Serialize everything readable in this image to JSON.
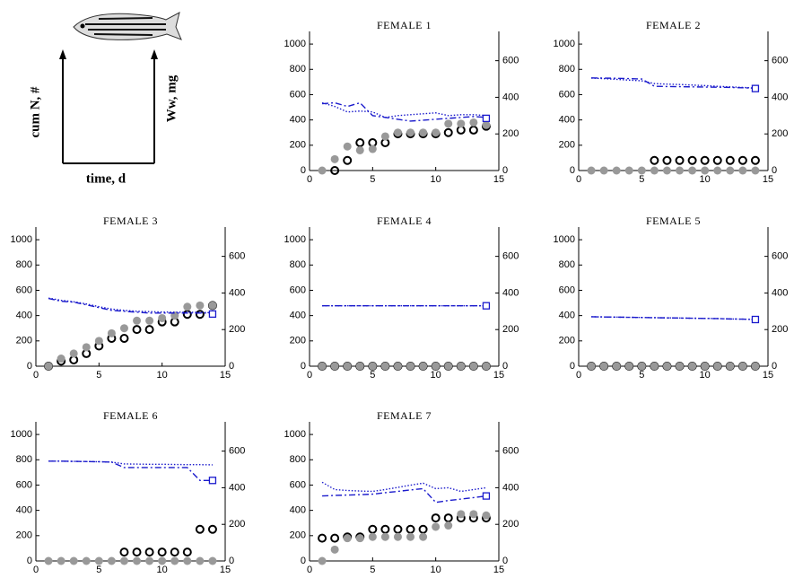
{
  "key": {
    "y_label": "cum N, #",
    "y2_label": "Ww, mg",
    "x_label": "time, d"
  },
  "chart_data": [
    {
      "type": "line",
      "title": "FEMALE 1",
      "x": [
        1,
        2,
        3,
        4,
        5,
        6,
        7,
        8,
        9,
        10,
        11,
        12,
        13,
        14
      ],
      "xlim": [
        0,
        15
      ],
      "xticks": [
        0,
        5,
        10,
        15
      ],
      "ylim": [
        0,
        1100
      ],
      "yticks": [
        0,
        200,
        400,
        600,
        800,
        1000
      ],
      "y2lim": [
        0,
        760
      ],
      "y2ticks": [
        0,
        200,
        400,
        600
      ],
      "series": [
        {
          "color": "#000000",
          "marker": "open-circle",
          "values": [
            null,
            0,
            80,
            220,
            220,
            220,
            290,
            290,
            290,
            290,
            300,
            320,
            320,
            350
          ]
        },
        {
          "color": "#999999",
          "marker": "filled-circle",
          "values": [
            0,
            90,
            190,
            160,
            170,
            270,
            300,
            300,
            300,
            300,
            370,
            370,
            380,
            360
          ]
        },
        {
          "color": "#1a1acc",
          "style": "dash-dot",
          "axis": "y2",
          "values": [
            365,
            370,
            350,
            370,
            300,
            290,
            280,
            270,
            275,
            280,
            285,
            290,
            295,
            290
          ]
        },
        {
          "color": "#1a1acc",
          "style": "dotted",
          "axis": "y2",
          "values": [
            370,
            350,
            320,
            325,
            320,
            290,
            300,
            305,
            310,
            315,
            300,
            305,
            305,
            300
          ]
        },
        {
          "color": "#1a1acc",
          "marker": "open-square",
          "axis": "y2",
          "values": [
            null,
            null,
            null,
            null,
            null,
            null,
            null,
            null,
            null,
            null,
            null,
            null,
            null,
            285
          ]
        }
      ]
    },
    {
      "type": "line",
      "title": "FEMALE 2",
      "x": [
        1,
        2,
        3,
        4,
        5,
        6,
        7,
        8,
        9,
        10,
        11,
        12,
        13,
        14
      ],
      "xlim": [
        0,
        15
      ],
      "xticks": [
        0,
        5,
        10,
        15
      ],
      "ylim": [
        0,
        1100
      ],
      "yticks": [
        0,
        200,
        400,
        600,
        800,
        1000
      ],
      "y2lim": [
        0,
        760
      ],
      "y2ticks": [
        0,
        200,
        400,
        600
      ],
      "series": [
        {
          "color": "#000000",
          "marker": "open-circle",
          "values": [
            null,
            null,
            null,
            null,
            null,
            80,
            80,
            80,
            80,
            80,
            80,
            80,
            80,
            80
          ]
        },
        {
          "color": "#999999",
          "marker": "filled-circle",
          "values": [
            0,
            0,
            0,
            0,
            0,
            0,
            0,
            0,
            0,
            0,
            0,
            0,
            0,
            0
          ]
        },
        {
          "color": "#1a1acc",
          "style": "dash-dot",
          "axis": "y2",
          "values": [
            506,
            505,
            504,
            502,
            500,
            460,
            459,
            458,
            457,
            456,
            455,
            454,
            452,
            450
          ]
        },
        {
          "color": "#1a1acc",
          "style": "dotted",
          "axis": "y2",
          "values": [
            505,
            502,
            498,
            494,
            490,
            475,
            472,
            470,
            467,
            464,
            460,
            457,
            454,
            450
          ]
        },
        {
          "color": "#1a1acc",
          "marker": "open-square",
          "axis": "y2",
          "values": [
            null,
            null,
            null,
            null,
            null,
            null,
            null,
            null,
            null,
            null,
            null,
            null,
            null,
            448
          ]
        }
      ]
    },
    {
      "type": "line",
      "title": "FEMALE 3",
      "x": [
        1,
        2,
        3,
        4,
        5,
        6,
        7,
        8,
        9,
        10,
        11,
        12,
        13,
        14
      ],
      "xlim": [
        0,
        15
      ],
      "xticks": [
        0,
        5,
        10,
        15
      ],
      "ylim": [
        0,
        1100
      ],
      "yticks": [
        0,
        200,
        400,
        600,
        800,
        1000
      ],
      "y2lim": [
        0,
        760
      ],
      "y2ticks": [
        0,
        200,
        400,
        600
      ],
      "series": [
        {
          "color": "#000000",
          "marker": "open-circle",
          "values": [
            0,
            40,
            50,
            100,
            160,
            220,
            220,
            290,
            290,
            350,
            350,
            410,
            410,
            480
          ]
        },
        {
          "color": "#999999",
          "marker": "filled-circle",
          "values": [
            0,
            60,
            100,
            150,
            200,
            260,
            300,
            360,
            360,
            380,
            400,
            470,
            480,
            480
          ]
        },
        {
          "color": "#1a1acc",
          "style": "dash-dot",
          "axis": "y2",
          "values": [
            370,
            355,
            350,
            335,
            320,
            305,
            300,
            295,
            290,
            290,
            290,
            290,
            290,
            290
          ]
        },
        {
          "color": "#1a1acc",
          "style": "dotted",
          "axis": "y2",
          "values": [
            372,
            360,
            352,
            340,
            325,
            312,
            305,
            300,
            298,
            296,
            295,
            295,
            294,
            292
          ]
        },
        {
          "color": "#1a1acc",
          "marker": "open-square",
          "axis": "y2",
          "values": [
            null,
            null,
            null,
            null,
            null,
            null,
            null,
            null,
            null,
            null,
            null,
            null,
            null,
            285
          ]
        }
      ]
    },
    {
      "type": "line",
      "title": "FEMALE 4",
      "x": [
        1,
        2,
        3,
        4,
        5,
        6,
        7,
        8,
        9,
        10,
        11,
        12,
        13,
        14
      ],
      "xlim": [
        0,
        15
      ],
      "xticks": [
        0,
        5,
        10,
        15
      ],
      "ylim": [
        0,
        1100
      ],
      "yticks": [
        0,
        200,
        400,
        600,
        800,
        1000
      ],
      "y2lim": [
        0,
        760
      ],
      "y2ticks": [
        0,
        200,
        400,
        600
      ],
      "series": [
        {
          "color": "#000000",
          "marker": "open-circle",
          "values": [
            0,
            0,
            0,
            0,
            0,
            0,
            0,
            0,
            0,
            0,
            0,
            0,
            0,
            0
          ]
        },
        {
          "color": "#999999",
          "marker": "filled-circle",
          "values": [
            0,
            0,
            0,
            0,
            0,
            0,
            0,
            0,
            0,
            0,
            0,
            0,
            0,
            0
          ]
        },
        {
          "color": "#1a1acc",
          "style": "dash-dot",
          "axis": "y2",
          "values": [
            330,
            330,
            330,
            330,
            330,
            330,
            330,
            330,
            330,
            330,
            330,
            330,
            330,
            330
          ]
        },
        {
          "color": "#1a1acc",
          "style": "dotted",
          "axis": "y2",
          "values": [
            330,
            330,
            330,
            330,
            330,
            330,
            330,
            330,
            330,
            330,
            330,
            330,
            330,
            330
          ]
        },
        {
          "color": "#1a1acc",
          "marker": "open-square",
          "axis": "y2",
          "values": [
            null,
            null,
            null,
            null,
            null,
            null,
            null,
            null,
            null,
            null,
            null,
            null,
            null,
            330
          ]
        }
      ]
    },
    {
      "type": "line",
      "title": "FEMALE 5",
      "x": [
        1,
        2,
        3,
        4,
        5,
        6,
        7,
        8,
        9,
        10,
        11,
        12,
        13,
        14
      ],
      "xlim": [
        0,
        15
      ],
      "xticks": [
        0,
        5,
        10,
        15
      ],
      "ylim": [
        0,
        1100
      ],
      "yticks": [
        0,
        200,
        400,
        600,
        800,
        1000
      ],
      "y2lim": [
        0,
        760
      ],
      "y2ticks": [
        0,
        200,
        400,
        600
      ],
      "series": [
        {
          "color": "#000000",
          "marker": "open-circle",
          "values": [
            0,
            0,
            0,
            0,
            0,
            0,
            0,
            0,
            0,
            0,
            0,
            0,
            0,
            0
          ]
        },
        {
          "color": "#999999",
          "marker": "filled-circle",
          "values": [
            0,
            0,
            0,
            0,
            0,
            0,
            0,
            0,
            0,
            0,
            0,
            0,
            0,
            0
          ]
        },
        {
          "color": "#1a1acc",
          "style": "dash-dot",
          "axis": "y2",
          "values": [
            270,
            269,
            268,
            267,
            266,
            265,
            264,
            263,
            262,
            261,
            260,
            258,
            257,
            255
          ]
        },
        {
          "color": "#1a1acc",
          "style": "dotted",
          "axis": "y2",
          "values": [
            270,
            269,
            268,
            267,
            266,
            265,
            264,
            263,
            262,
            261,
            260,
            258,
            257,
            255
          ]
        },
        {
          "color": "#1a1acc",
          "marker": "open-square",
          "axis": "y2",
          "values": [
            null,
            null,
            null,
            null,
            null,
            null,
            null,
            null,
            null,
            null,
            null,
            null,
            null,
            255
          ]
        }
      ]
    },
    {
      "type": "line",
      "title": "FEMALE 6",
      "x": [
        1,
        2,
        3,
        4,
        5,
        6,
        7,
        8,
        9,
        10,
        11,
        12,
        13,
        14
      ],
      "xlim": [
        0,
        15
      ],
      "xticks": [
        0,
        5,
        10,
        15
      ],
      "ylim": [
        0,
        1100
      ],
      "yticks": [
        0,
        200,
        400,
        600,
        800,
        1000
      ],
      "y2lim": [
        0,
        760
      ],
      "y2ticks": [
        0,
        200,
        400,
        600
      ],
      "series": [
        {
          "color": "#000000",
          "marker": "open-circle",
          "values": [
            null,
            null,
            null,
            null,
            null,
            null,
            70,
            70,
            70,
            70,
            70,
            70,
            250,
            250
          ]
        },
        {
          "color": "#999999",
          "marker": "filled-circle",
          "values": [
            0,
            0,
            0,
            0,
            0,
            0,
            0,
            0,
            0,
            0,
            0,
            0,
            0,
            0
          ]
        },
        {
          "color": "#1a1acc",
          "style": "dash-dot",
          "axis": "y2",
          "values": [
            545,
            545,
            544,
            543,
            542,
            540,
            510,
            510,
            510,
            510,
            510,
            510,
            440,
            440
          ]
        },
        {
          "color": "#1a1acc",
          "style": "dotted",
          "axis": "y2",
          "values": [
            545,
            545,
            544,
            543,
            542,
            540,
            530,
            529,
            528,
            528,
            527,
            526,
            526,
            525
          ]
        },
        {
          "color": "#1a1acc",
          "marker": "open-square",
          "axis": "y2",
          "values": [
            null,
            null,
            null,
            null,
            null,
            null,
            null,
            null,
            null,
            null,
            null,
            null,
            null,
            440
          ]
        }
      ]
    },
    {
      "type": "line",
      "title": "FEMALE 7",
      "x": [
        1,
        2,
        3,
        4,
        5,
        6,
        7,
        8,
        9,
        10,
        11,
        12,
        13,
        14
      ],
      "xlim": [
        0,
        15
      ],
      "xticks": [
        0,
        5,
        10,
        15
      ],
      "ylim": [
        0,
        1100
      ],
      "yticks": [
        0,
        200,
        400,
        600,
        800,
        1000
      ],
      "y2lim": [
        0,
        760
      ],
      "y2ticks": [
        0,
        200,
        400,
        600
      ],
      "series": [
        {
          "color": "#000000",
          "marker": "open-circle",
          "values": [
            180,
            180,
            190,
            190,
            250,
            250,
            250,
            250,
            250,
            340,
            340,
            340,
            340,
            340
          ]
        },
        {
          "color": "#999999",
          "marker": "filled-circle",
          "values": [
            0,
            90,
            180,
            180,
            190,
            190,
            190,
            190,
            190,
            270,
            280,
            370,
            370,
            360
          ]
        },
        {
          "color": "#1a1acc",
          "style": "dash-dot",
          "axis": "y2",
          "values": [
            355,
            358,
            360,
            362,
            365,
            373,
            380,
            388,
            395,
            320,
            330,
            338,
            346,
            355
          ]
        },
        {
          "color": "#1a1acc",
          "style": "dotted",
          "axis": "y2",
          "values": [
            430,
            390,
            385,
            382,
            380,
            390,
            402,
            414,
            425,
            395,
            400,
            380,
            390,
            400
          ]
        },
        {
          "color": "#1a1acc",
          "marker": "open-square",
          "axis": "y2",
          "values": [
            null,
            null,
            null,
            null,
            null,
            null,
            null,
            null,
            null,
            null,
            null,
            null,
            null,
            355
          ]
        }
      ]
    }
  ]
}
